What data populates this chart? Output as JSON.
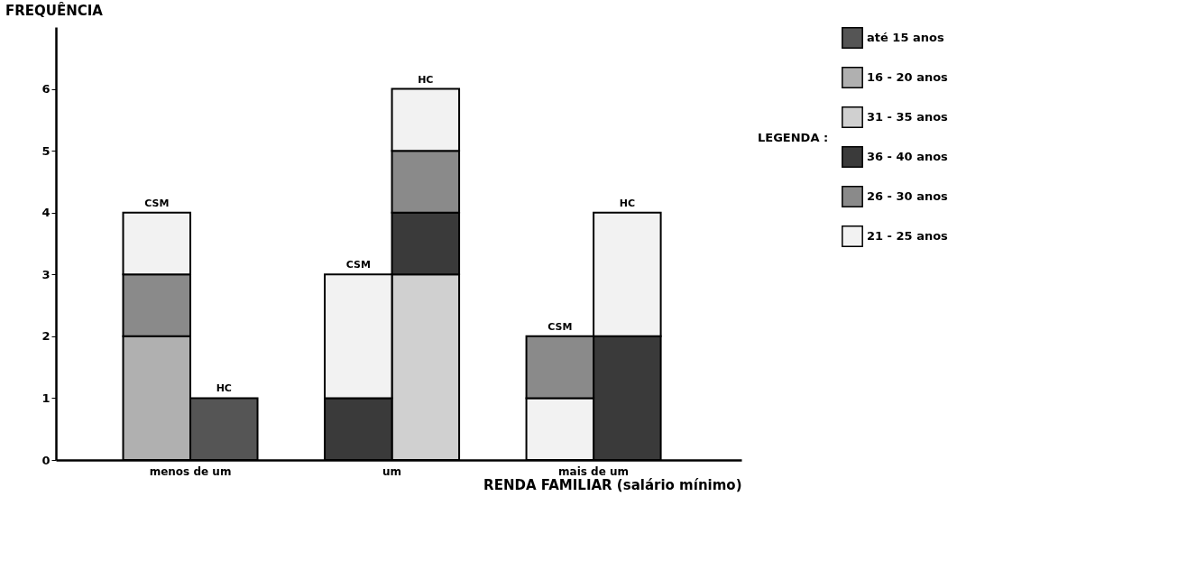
{
  "chart_data": {
    "type": "bar",
    "stacked": true,
    "ylabel": "FREQUÊNCIA",
    "xlabel": "RENDA FAMILIAR (salário mínimo)",
    "legend_title": "LEGENDA :",
    "legend": "top right",
    "grid": false,
    "categories": [
      null,
      null,
      null,
      null,
      null,
      null
    ],
    "annotations": [
      "menos de um",
      "um",
      "mais de um",
      {
        "text": "CSM",
        "y": 4
      },
      {
        "text": "HC",
        "y": 1
      },
      {
        "text": "CSM",
        "y": 3
      },
      {
        "text": "HC",
        "y": 6
      },
      {
        "text": "CSM",
        "y": 2
      },
      {
        "text": "HC",
        "y": 4
      }
    ],
    "ylim": [
      0,
      7
    ],
    "yticks": [
      0,
      1,
      2,
      3,
      4,
      5,
      6
    ],
    "series": [
      {
        "name": "até 15 anos",
        "color": "#555555",
        "values": [
          null,
          1,
          null,
          null,
          null,
          null
        ]
      },
      {
        "name": "16 - 20 anos",
        "color": "#b0b0b0",
        "values": [
          2,
          null,
          null,
          null,
          null,
          null
        ]
      },
      {
        "name": "31 - 35 anos",
        "color": "#d0d0d0",
        "values": [
          null,
          null,
          null,
          3,
          null,
          null
        ]
      },
      {
        "name": "36 - 40 anos",
        "color": "#3a3a3a",
        "values": [
          null,
          null,
          1,
          1,
          null,
          2
        ]
      },
      {
        "color": "#f2f2f2",
        "values": [
          null,
          null,
          null,
          null,
          1,
          null
        ]
      },
      {
        "name": "26 - 30 anos",
        "color": "#8a8a8a",
        "values": [
          1,
          null,
          null,
          1,
          1,
          null
        ]
      },
      {
        "name": "21 - 25 anos",
        "color": "#f2f2f2",
        "values": [
          1,
          null,
          2,
          1,
          null,
          2
        ]
      }
    ]
  }
}
